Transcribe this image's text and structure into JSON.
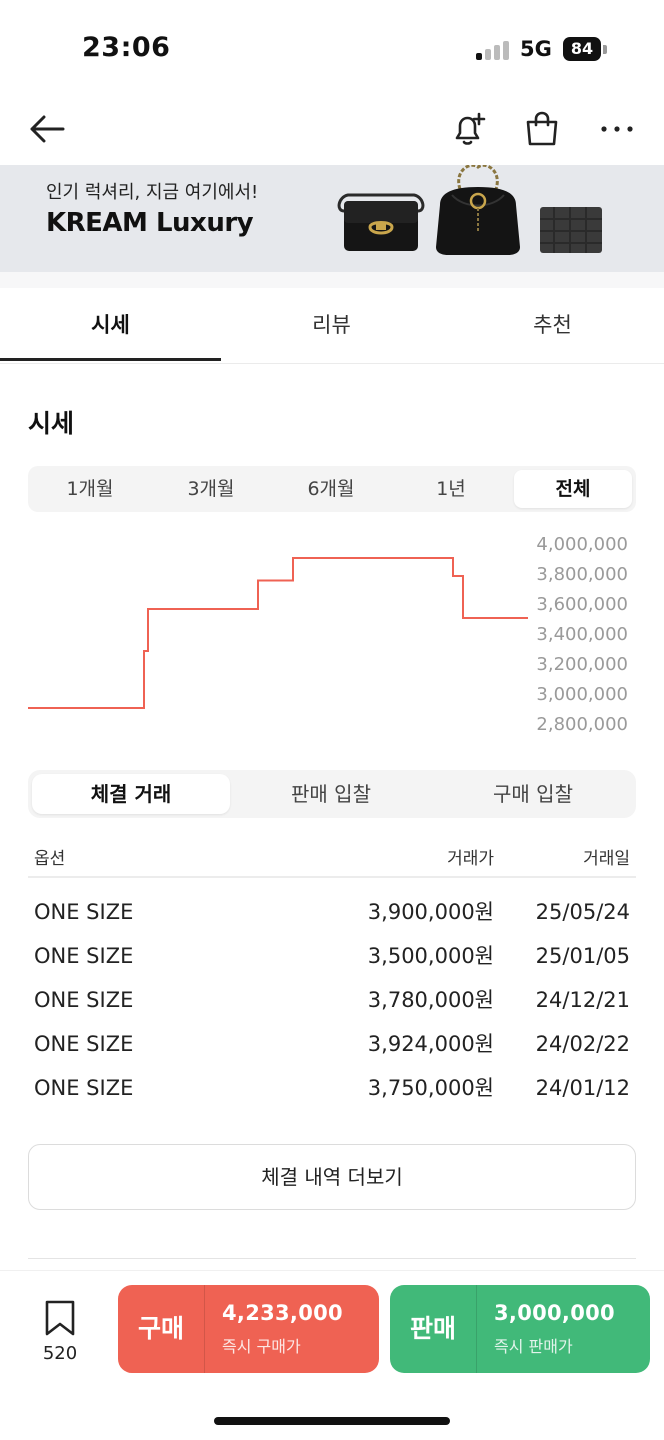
{
  "status_bar": {
    "time": "23:06",
    "network": "5G",
    "battery": "84"
  },
  "topnav": {
    "icons": [
      "back-arrow-icon",
      "bell-plus-icon",
      "shopping-bag-icon",
      "more-icon"
    ]
  },
  "banner": {
    "subtitle": "인기 럭셔리, 지금 여기에서!",
    "title": "KREAM Luxury"
  },
  "tabs": [
    {
      "label": "시세",
      "active": true
    },
    {
      "label": "리뷰",
      "active": false
    },
    {
      "label": "추천",
      "active": false
    }
  ],
  "section": {
    "title": "시세"
  },
  "periods": [
    {
      "label": "1개월",
      "active": false
    },
    {
      "label": "3개월",
      "active": false
    },
    {
      "label": "6개월",
      "active": false
    },
    {
      "label": "1년",
      "active": false
    },
    {
      "label": "전체",
      "active": true
    }
  ],
  "chart_data": {
    "type": "line",
    "step": true,
    "color": "#ef6253",
    "ylim": [
      2800000,
      4000000
    ],
    "y_ticks": [
      "4,000,000",
      "3,800,000",
      "3,600,000",
      "3,400,000",
      "3,200,000",
      "3,000,000",
      "2,800,000"
    ],
    "x_labels": [],
    "x": [
      0,
      0.23,
      0.232,
      0.24,
      0.45,
      0.46,
      0.52,
      0.53,
      0.84,
      0.85,
      0.86,
      0.87,
      1.0
    ],
    "values": [
      2900000,
      2900000,
      3280000,
      3560000,
      3560000,
      3750000,
      3750000,
      3900000,
      3900000,
      3780000,
      3780000,
      3500000,
      3500000
    ]
  },
  "trade_tabs": [
    {
      "label": "체결 거래",
      "active": true
    },
    {
      "label": "판매 입찰",
      "active": false
    },
    {
      "label": "구매 입찰",
      "active": false
    }
  ],
  "table": {
    "headers": {
      "option": "옵션",
      "price": "거래가",
      "date": "거래일"
    },
    "rows": [
      {
        "option": "ONE SIZE",
        "price": "3,900,000원",
        "date": "25/05/24"
      },
      {
        "option": "ONE SIZE",
        "price": "3,500,000원",
        "date": "25/01/05"
      },
      {
        "option": "ONE SIZE",
        "price": "3,780,000원",
        "date": "24/12/21"
      },
      {
        "option": "ONE SIZE",
        "price": "3,924,000원",
        "date": "24/02/22"
      },
      {
        "option": "ONE SIZE",
        "price": "3,750,000원",
        "date": "24/01/12"
      }
    ]
  },
  "more_button": {
    "label": "체결 내역 더보기"
  },
  "bottom": {
    "wish_count": "520",
    "buy": {
      "label": "구매",
      "price": "4,233,000",
      "sub": "즉시 구매가",
      "color": "#ef6253"
    },
    "sell": {
      "label": "판매",
      "price": "3,000,000",
      "sub": "즉시 판매가",
      "color": "#41b979"
    }
  }
}
